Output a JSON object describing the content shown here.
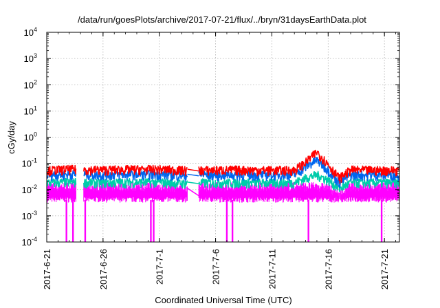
{
  "chart_data": {
    "type": "line",
    "title": "/data/run/goesPlots/archive/2017-07-21/flux/../bryn/31daysEarthData.plot",
    "xlabel": "Coordinated Universal Time (UTC)",
    "ylabel": "cGy/day",
    "y_scale": "log",
    "ylim": [
      0.0001,
      10000
    ],
    "y_ticks": [
      {
        "value": 0.0001,
        "base": "10",
        "exp": "-4"
      },
      {
        "value": 0.001,
        "base": "10",
        "exp": "-3"
      },
      {
        "value": 0.01,
        "base": "10",
        "exp": "-2"
      },
      {
        "value": 0.1,
        "base": "10",
        "exp": "-1"
      },
      {
        "value": 1,
        "base": "10",
        "exp": "0"
      },
      {
        "value": 10,
        "base": "10",
        "exp": "1"
      },
      {
        "value": 100,
        "base": "10",
        "exp": "2"
      },
      {
        "value": 1000,
        "base": "10",
        "exp": "3"
      },
      {
        "value": 10000,
        "base": "10",
        "exp": "4"
      }
    ],
    "xlim": [
      "2017-06-21",
      "2017-07-22T08:00"
    ],
    "x_ticks": [
      "2017-6-21",
      "2017-6-26",
      "2017-7-1",
      "2017-7-6",
      "2017-7-11",
      "2017-7-16",
      "2017-7-21"
    ],
    "x_tick_dates": [
      "2017-06-21",
      "2017-06-26",
      "2017-07-01",
      "2017-07-06",
      "2017-07-11",
      "2017-07-16",
      "2017-07-21"
    ],
    "grid": true,
    "data_gaps": [
      [
        "2017-06-23T15:00",
        "2017-06-24T06:00"
      ],
      [
        "2017-07-03T12:00",
        "2017-07-04T12:00"
      ]
    ],
    "series": [
      {
        "color": "#ff0000",
        "values": [
          {
            "x": "2017-06-21",
            "y": 0.06
          },
          {
            "x": "2017-06-23",
            "y": 0.065
          },
          {
            "x": "2017-06-26",
            "y": 0.062
          },
          {
            "x": "2017-06-29",
            "y": 0.065
          },
          {
            "x": "2017-07-01",
            "y": 0.065
          },
          {
            "x": "2017-07-03",
            "y": 0.06
          },
          {
            "x": "2017-07-05",
            "y": 0.06
          },
          {
            "x": "2017-07-08",
            "y": 0.062
          },
          {
            "x": "2017-07-11",
            "y": 0.06
          },
          {
            "x": "2017-07-13",
            "y": 0.06
          },
          {
            "x": "2017-07-14",
            "y": 0.12
          },
          {
            "x": "2017-07-15",
            "y": 0.3
          },
          {
            "x": "2017-07-16",
            "y": 0.1
          },
          {
            "x": "2017-07-17",
            "y": 0.03
          },
          {
            "x": "2017-07-18",
            "y": 0.062
          },
          {
            "x": "2017-07-20",
            "y": 0.06
          },
          {
            "x": "2017-07-22",
            "y": 0.06
          }
        ]
      },
      {
        "color": "#0066ee",
        "values": [
          {
            "x": "2017-06-21",
            "y": 0.04
          },
          {
            "x": "2017-06-23",
            "y": 0.042
          },
          {
            "x": "2017-06-26",
            "y": 0.04
          },
          {
            "x": "2017-06-29",
            "y": 0.042
          },
          {
            "x": "2017-07-01",
            "y": 0.042
          },
          {
            "x": "2017-07-03",
            "y": 0.038
          },
          {
            "x": "2017-07-05",
            "y": 0.04
          },
          {
            "x": "2017-07-08",
            "y": 0.04
          },
          {
            "x": "2017-07-11",
            "y": 0.04
          },
          {
            "x": "2017-07-13",
            "y": 0.04
          },
          {
            "x": "2017-07-14",
            "y": 0.08
          },
          {
            "x": "2017-07-15",
            "y": 0.15
          },
          {
            "x": "2017-07-16",
            "y": 0.06
          },
          {
            "x": "2017-07-17",
            "y": 0.02
          },
          {
            "x": "2017-07-18",
            "y": 0.04
          },
          {
            "x": "2017-07-20",
            "y": 0.04
          },
          {
            "x": "2017-07-22",
            "y": 0.04
          }
        ]
      },
      {
        "color": "#00ccaa",
        "values": [
          {
            "x": "2017-06-21",
            "y": 0.02
          },
          {
            "x": "2017-06-23",
            "y": 0.021
          },
          {
            "x": "2017-06-26",
            "y": 0.02
          },
          {
            "x": "2017-06-29",
            "y": 0.021
          },
          {
            "x": "2017-07-01",
            "y": 0.021
          },
          {
            "x": "2017-07-03",
            "y": 0.019
          },
          {
            "x": "2017-07-05",
            "y": 0.02
          },
          {
            "x": "2017-07-08",
            "y": 0.02
          },
          {
            "x": "2017-07-11",
            "y": 0.02
          },
          {
            "x": "2017-07-13",
            "y": 0.02
          },
          {
            "x": "2017-07-14",
            "y": 0.03
          },
          {
            "x": "2017-07-15",
            "y": 0.04
          },
          {
            "x": "2017-07-16",
            "y": 0.025
          },
          {
            "x": "2017-07-17",
            "y": 0.012
          },
          {
            "x": "2017-07-18",
            "y": 0.02
          },
          {
            "x": "2017-07-20",
            "y": 0.02
          },
          {
            "x": "2017-07-22",
            "y": 0.02
          }
        ]
      },
      {
        "color": "#ff00ff",
        "values": [
          {
            "x": "2017-06-21",
            "y": 0.012
          },
          {
            "x": "2017-06-23",
            "y": 0.012
          },
          {
            "x": "2017-06-26",
            "y": 0.012
          },
          {
            "x": "2017-06-29",
            "y": 0.012
          },
          {
            "x": "2017-07-01",
            "y": 0.012
          },
          {
            "x": "2017-07-03",
            "y": 0.011
          },
          {
            "x": "2017-07-05",
            "y": 0.012
          },
          {
            "x": "2017-07-08",
            "y": 0.012
          },
          {
            "x": "2017-07-11",
            "y": 0.012
          },
          {
            "x": "2017-07-13",
            "y": 0.012
          },
          {
            "x": "2017-07-14",
            "y": 0.012
          },
          {
            "x": "2017-07-15",
            "y": 0.012
          },
          {
            "x": "2017-07-16",
            "y": 0.011
          },
          {
            "x": "2017-07-17",
            "y": 0.006
          },
          {
            "x": "2017-07-18",
            "y": 0.012
          },
          {
            "x": "2017-07-20",
            "y": 0.012
          },
          {
            "x": "2017-07-22",
            "y": 0.012
          }
        ]
      }
    ],
    "magenta_low_range": [
      0.004,
      0.012
    ],
    "magenta_dropouts": [
      "2017-06-22T18:00",
      "2017-06-23T08:00",
      "2017-06-24T10:00",
      "2017-06-30T06:00",
      "2017-06-30T12:00",
      "2017-07-07T00:00",
      "2017-07-07T12:00",
      "2017-07-14T06:00",
      "2017-07-20T18:00"
    ]
  }
}
